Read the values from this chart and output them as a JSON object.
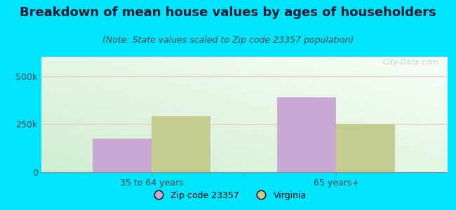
{
  "title": "Breakdown of mean house values by ages of householders",
  "subtitle": "(Note: State values scaled to Zip code 23357 population)",
  "categories": [
    "35 to 64 years",
    "65 years+"
  ],
  "zip_values": [
    175000,
    390000
  ],
  "state_values": [
    290000,
    250000
  ],
  "zip_color": "#c9a8d4",
  "state_color": "#c5cc90",
  "zip_label": "Zip code 23357",
  "state_label": "Virginia",
  "ylim": [
    0,
    600000
  ],
  "yticks": [
    0,
    250000,
    500000
  ],
  "ytick_labels": [
    "0",
    "250k",
    "500k"
  ],
  "background_outer": "#00e5ff",
  "bar_width": 0.32,
  "watermark": "City-Data.com",
  "title_fontsize": 13,
  "subtitle_fontsize": 9,
  "grid_color": "#f0c0c8"
}
